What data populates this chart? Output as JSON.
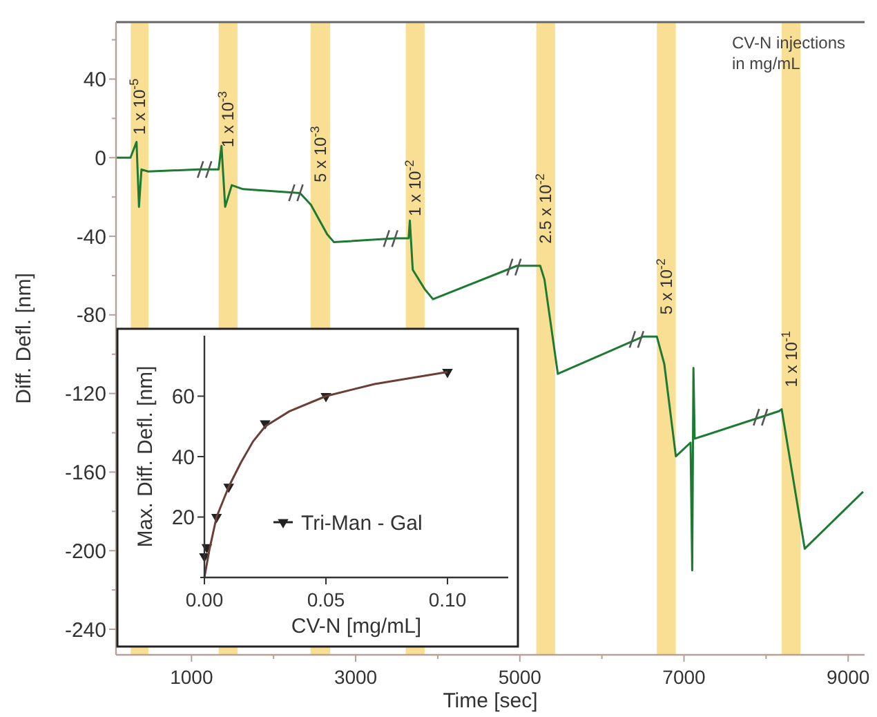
{
  "chart_data": [
    {
      "type": "line",
      "xlabel": "Time [sec]",
      "ylabel": "Diff. Defl. [nm]",
      "x": [
        80,
        256,
        330,
        360,
        390,
        471,
        1083,
        1330,
        1365,
        1410,
        1490,
        1628,
        2322,
        2455,
        2653,
        2736,
        3480,
        3645,
        3660,
        3695,
        3843,
        3942,
        4967,
        5248,
        5300,
        5463,
        6504,
        6669,
        6760,
        6901,
        7080,
        7100,
        7115,
        7130,
        8157,
        8190,
        8471,
        9182
      ],
      "series": [
        {
          "color": "#1d7a32",
          "values": [
            0,
            0,
            8,
            -25,
            -6,
            -7,
            -6,
            -6,
            6,
            -25,
            -14,
            -16,
            -18,
            -24,
            -39,
            -43,
            -41,
            -41,
            -32,
            -57,
            -67,
            -72,
            -55,
            -55,
            -62,
            -110,
            -91,
            -91,
            -105,
            -152,
            -145,
            -210,
            -107,
            -143,
            -129,
            -128,
            -199,
            -170
          ]
        }
      ],
      "xlim": [
        80,
        9200
      ],
      "ylim": [
        -253,
        69
      ],
      "xticks": [
        1000,
        {
          "value": 2000,
          "label": null
        },
        3000,
        {
          "value": 4000,
          "label": null
        },
        5000,
        {
          "value": 6000,
          "label": null
        },
        7000,
        {
          "value": 8000,
          "label": null
        },
        9000
      ],
      "yticks": [
        {
          "value": 60,
          "label": null
        },
        40,
        {
          "value": 20,
          "label": null
        },
        0,
        {
          "value": -20,
          "label": null
        },
        -40,
        {
          "value": -60,
          "label": null
        },
        -80,
        {
          "value": -100,
          "label": null
        },
        -120,
        {
          "value": -140,
          "label": null
        },
        -160,
        {
          "value": -180,
          "label": null
        },
        -200,
        {
          "value": -220,
          "label": null
        },
        -240
      ],
      "bands": [
        {
          "axis": "x",
          "from": 260,
          "to": 475,
          "label": "1 x 10$^{-5}$",
          "color": "#f8df94"
        },
        {
          "axis": "x",
          "from": 1330,
          "to": 1560,
          "label": "1 x 10$^{-3}$",
          "color": "#f8df94"
        },
        {
          "axis": "x",
          "from": 2450,
          "to": 2690,
          "label": "5 x 10$^{-3}$",
          "color": "#f8df94"
        },
        {
          "axis": "x",
          "from": 3610,
          "to": 3840,
          "label": "1 x 10$^{-2}$",
          "color": "#f8df94"
        },
        {
          "axis": "x",
          "from": 5200,
          "to": 5430,
          "label": "2.5 x 10$^{-2}$",
          "color": "#f8df94"
        },
        {
          "axis": "x",
          "from": 6670,
          "to": 6900,
          "label": "5 x 10$^{-2}$",
          "color": "#f8df94"
        },
        {
          "axis": "x",
          "from": 8190,
          "to": 8420,
          "label": "1 x 10$^{-1}$",
          "color": "#f8df94"
        }
      ],
      "annotations": [
        "CV-N injections\nin mg/mL"
      ],
      "grid": false,
      "legend": false,
      "marker": "none"
    },
    {
      "type": "scatter",
      "xlabel": "CV-N [mg/mL]",
      "ylabel": "Max. Diff. Defl. [nm]",
      "series": [
        {
          "name": "Tri-Man - Gal",
          "color": "#222222",
          "x": [
            1e-05,
            0.001,
            0.005,
            0.01,
            0.025,
            0.05,
            0.1
          ],
          "values": [
            7,
            10,
            20,
            30,
            51,
            60,
            68
          ]
        },
        {
          "type": "line",
          "marker": "none",
          "color": "#6b3f35",
          "x": [
            0,
            0.002,
            0.005,
            0.01,
            0.015,
            0.02,
            0.025,
            0.035,
            0.05,
            0.07,
            0.1
          ],
          "values": [
            0,
            9,
            20,
            30,
            38,
            45,
            50,
            55,
            60,
            64,
            68
          ]
        }
      ],
      "xlim": [
        0,
        0.125
      ],
      "ylim": [
        0,
        80
      ],
      "xticks": [
        {
          "value": 0,
          "label": "0.00"
        },
        {
          "value": 0.05,
          "label": "0.05"
        },
        {
          "value": 0.1,
          "label": "0.10"
        }
      ],
      "yticks": [
        {
          "value": 0,
          "label": null
        },
        20,
        40,
        60
      ],
      "grid": false,
      "legend": "bottom right",
      "marker": "triangle"
    }
  ]
}
